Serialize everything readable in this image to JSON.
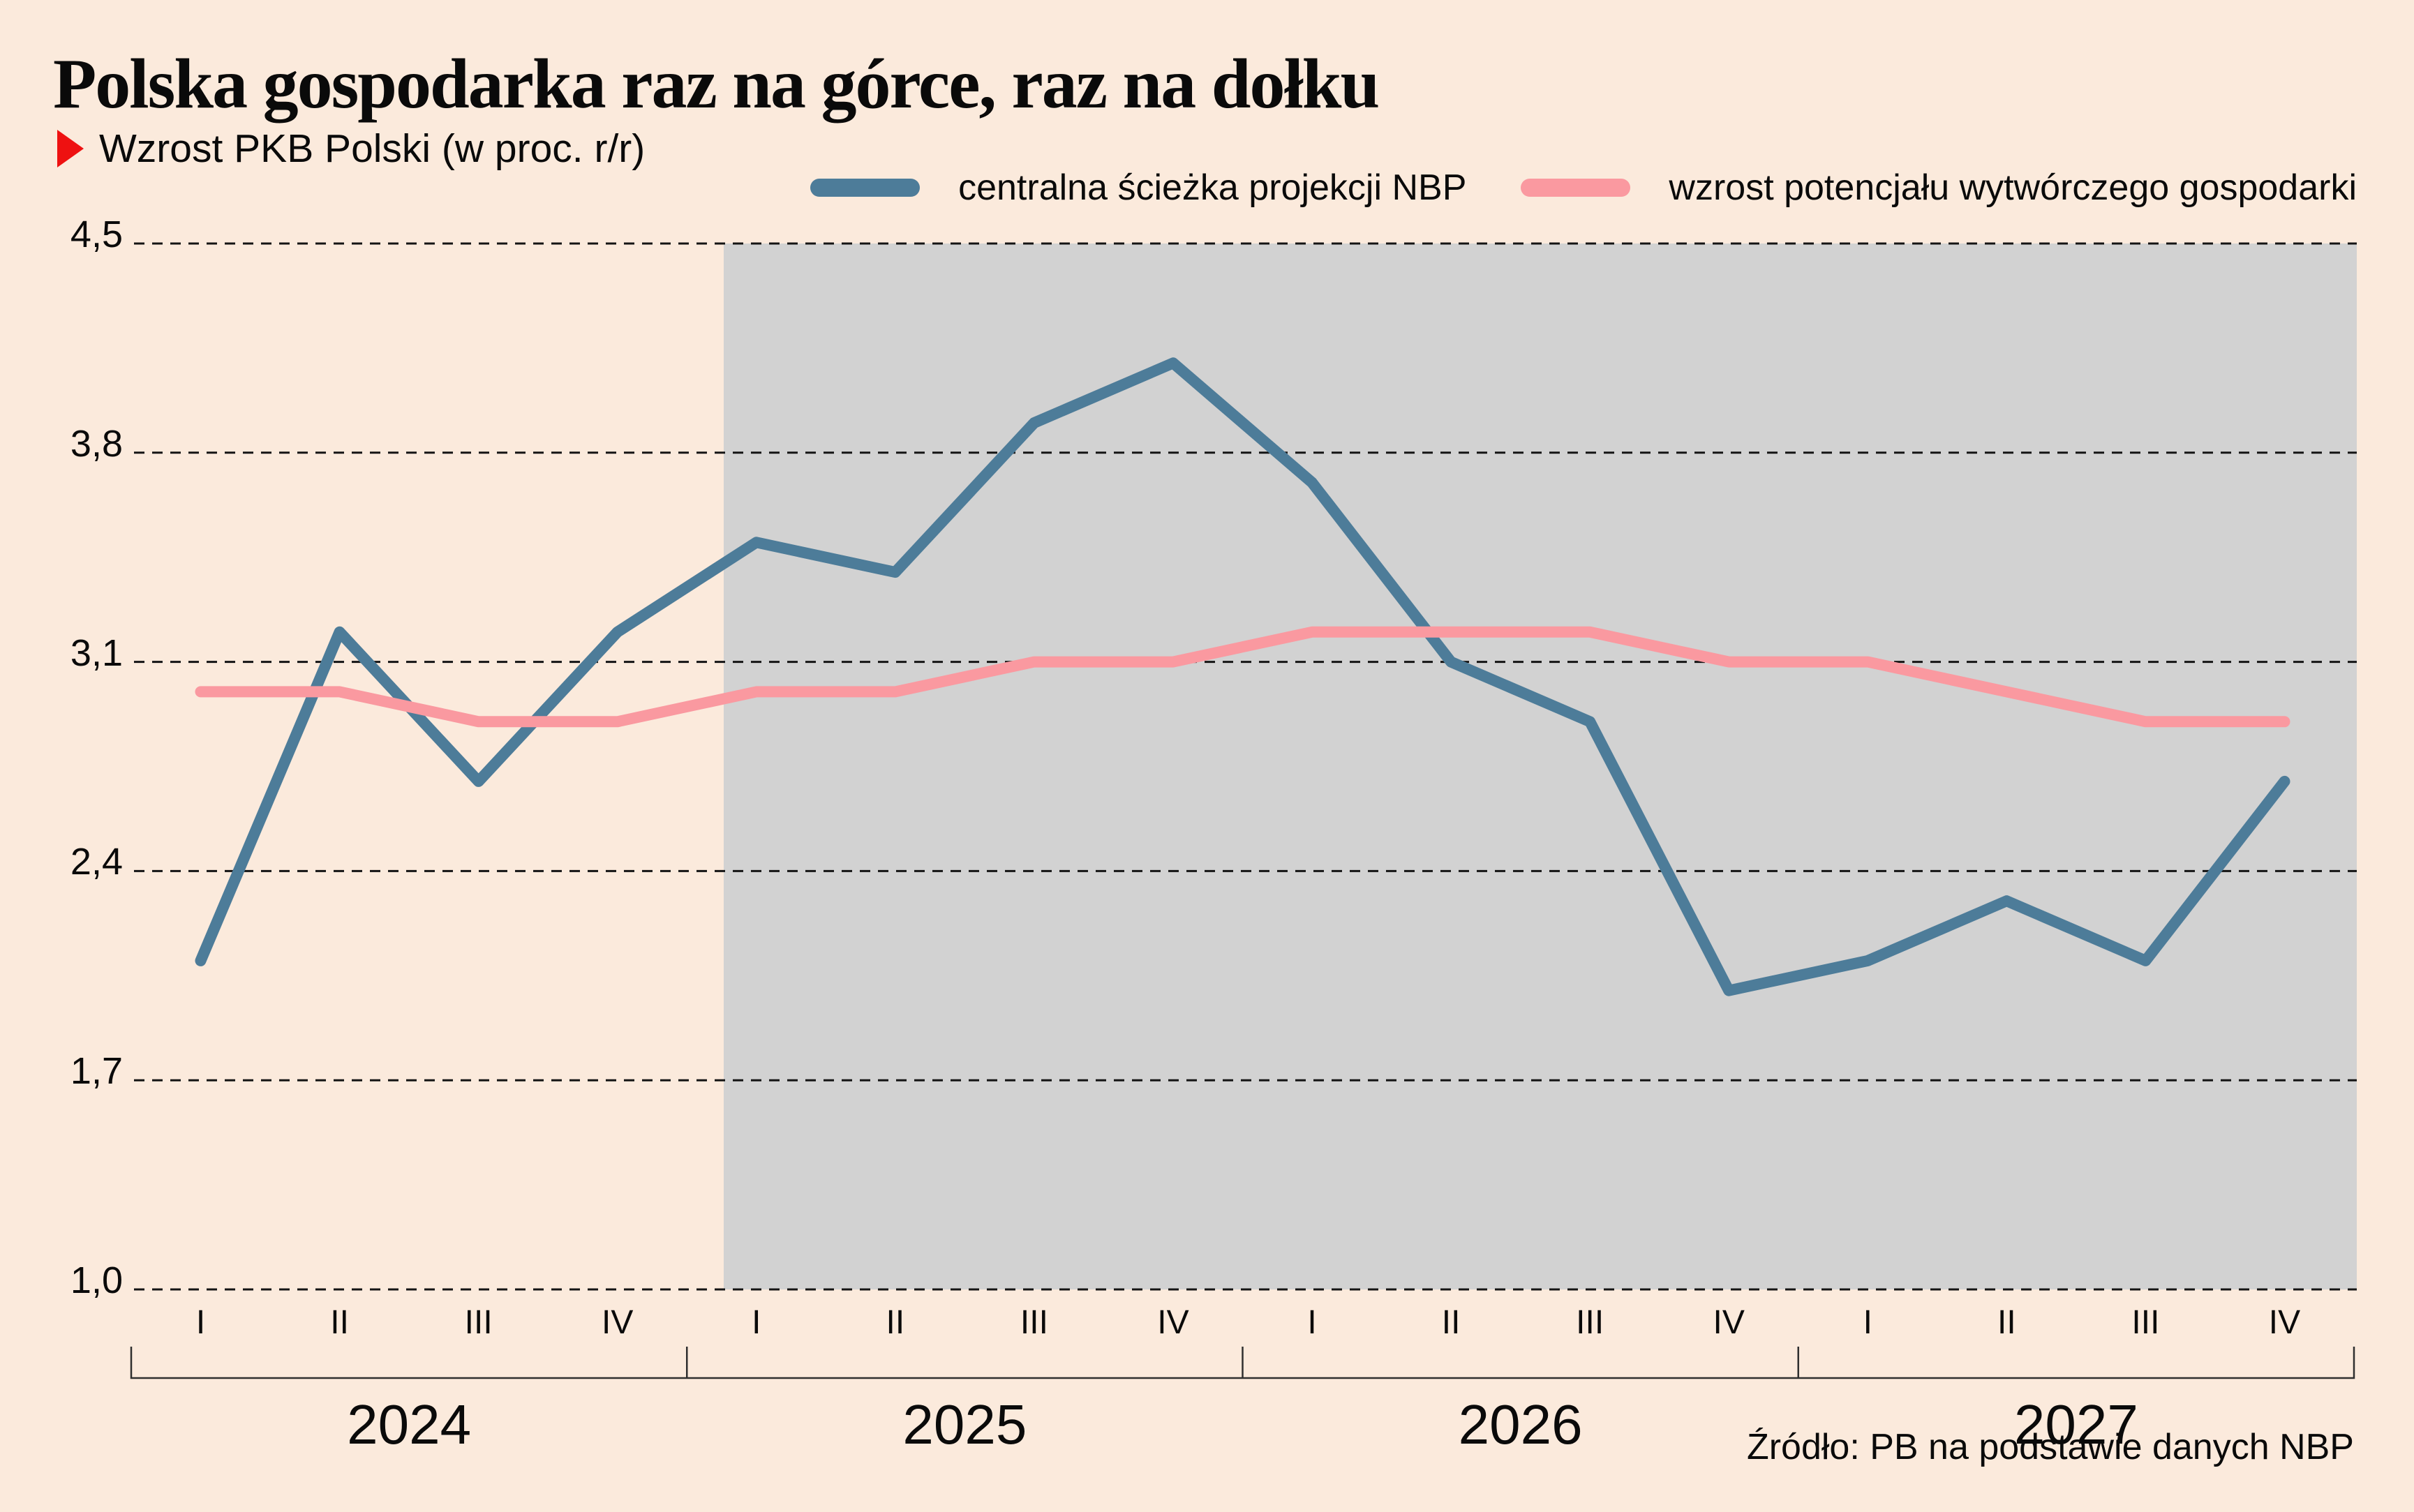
{
  "page": {
    "title": "Polska gospodarka raz na górce, raz na dołku",
    "subtitle": "Wzrost PKB Polski (w proc. r/r)",
    "source": "Źródło: PB na podstawie danych NBP"
  },
  "colors": {
    "background": "#fbeadc",
    "projection_shade": "#d2d2d2",
    "series_blue": "#4d7c99",
    "series_pink": "#fa99a0",
    "accent_red": "#ee1111",
    "grid": "#141414",
    "axis": "#2f2f2f",
    "text": "#0a0a0a"
  },
  "legend": {
    "items": [
      {
        "label": "centralna ścieżka projekcji NBP",
        "color": "#4d7c99"
      },
      {
        "label": "wzrost potencjału wytwórczego gospodarki",
        "color": "#fa99a0"
      }
    ]
  },
  "chart_data": {
    "type": "line",
    "title": "Wzrost PKB Polski (w proc. r/r)",
    "ylabel": "proc. r/r",
    "ylim": [
      1.0,
      4.5
    ],
    "grid": "horizontal-dashed",
    "legend_position": "top",
    "yticks": [
      {
        "value": 4.5,
        "label": "4,5"
      },
      {
        "value": 3.8,
        "label": "3,8"
      },
      {
        "value": 3.1,
        "label": "3,1"
      },
      {
        "value": 2.4,
        "label": "2,4"
      },
      {
        "value": 1.7,
        "label": "1,7"
      },
      {
        "value": 1.0,
        "label": "1,0"
      }
    ],
    "years": [
      {
        "year": "2024",
        "quarters": [
          "I",
          "II",
          "III",
          "IV"
        ]
      },
      {
        "year": "2025",
        "quarters": [
          "I",
          "II",
          "III",
          "IV"
        ]
      },
      {
        "year": "2026",
        "quarters": [
          "I",
          "II",
          "III",
          "IV"
        ]
      },
      {
        "year": "2027",
        "quarters": [
          "I",
          "II",
          "III",
          "IV"
        ]
      }
    ],
    "projection": {
      "starts_at": "2025 I",
      "start_index": 4,
      "style": "gray shading"
    },
    "series": [
      {
        "name": "centralna ścieżka projekcji NBP",
        "color": "#4d7c99",
        "values": [
          2.1,
          3.2,
          2.7,
          3.2,
          3.5,
          3.4,
          3.9,
          4.1,
          3.7,
          3.1,
          2.9,
          2.0,
          2.1,
          2.3,
          2.1,
          2.7
        ]
      },
      {
        "name": "wzrost potencjału wytwórczego gospodarki",
        "color": "#fa99a0",
        "values": [
          3.0,
          3.0,
          2.9,
          2.9,
          3.0,
          3.0,
          3.1,
          3.1,
          3.2,
          3.2,
          3.2,
          3.1,
          3.1,
          3.0,
          2.9,
          2.9
        ]
      }
    ]
  }
}
